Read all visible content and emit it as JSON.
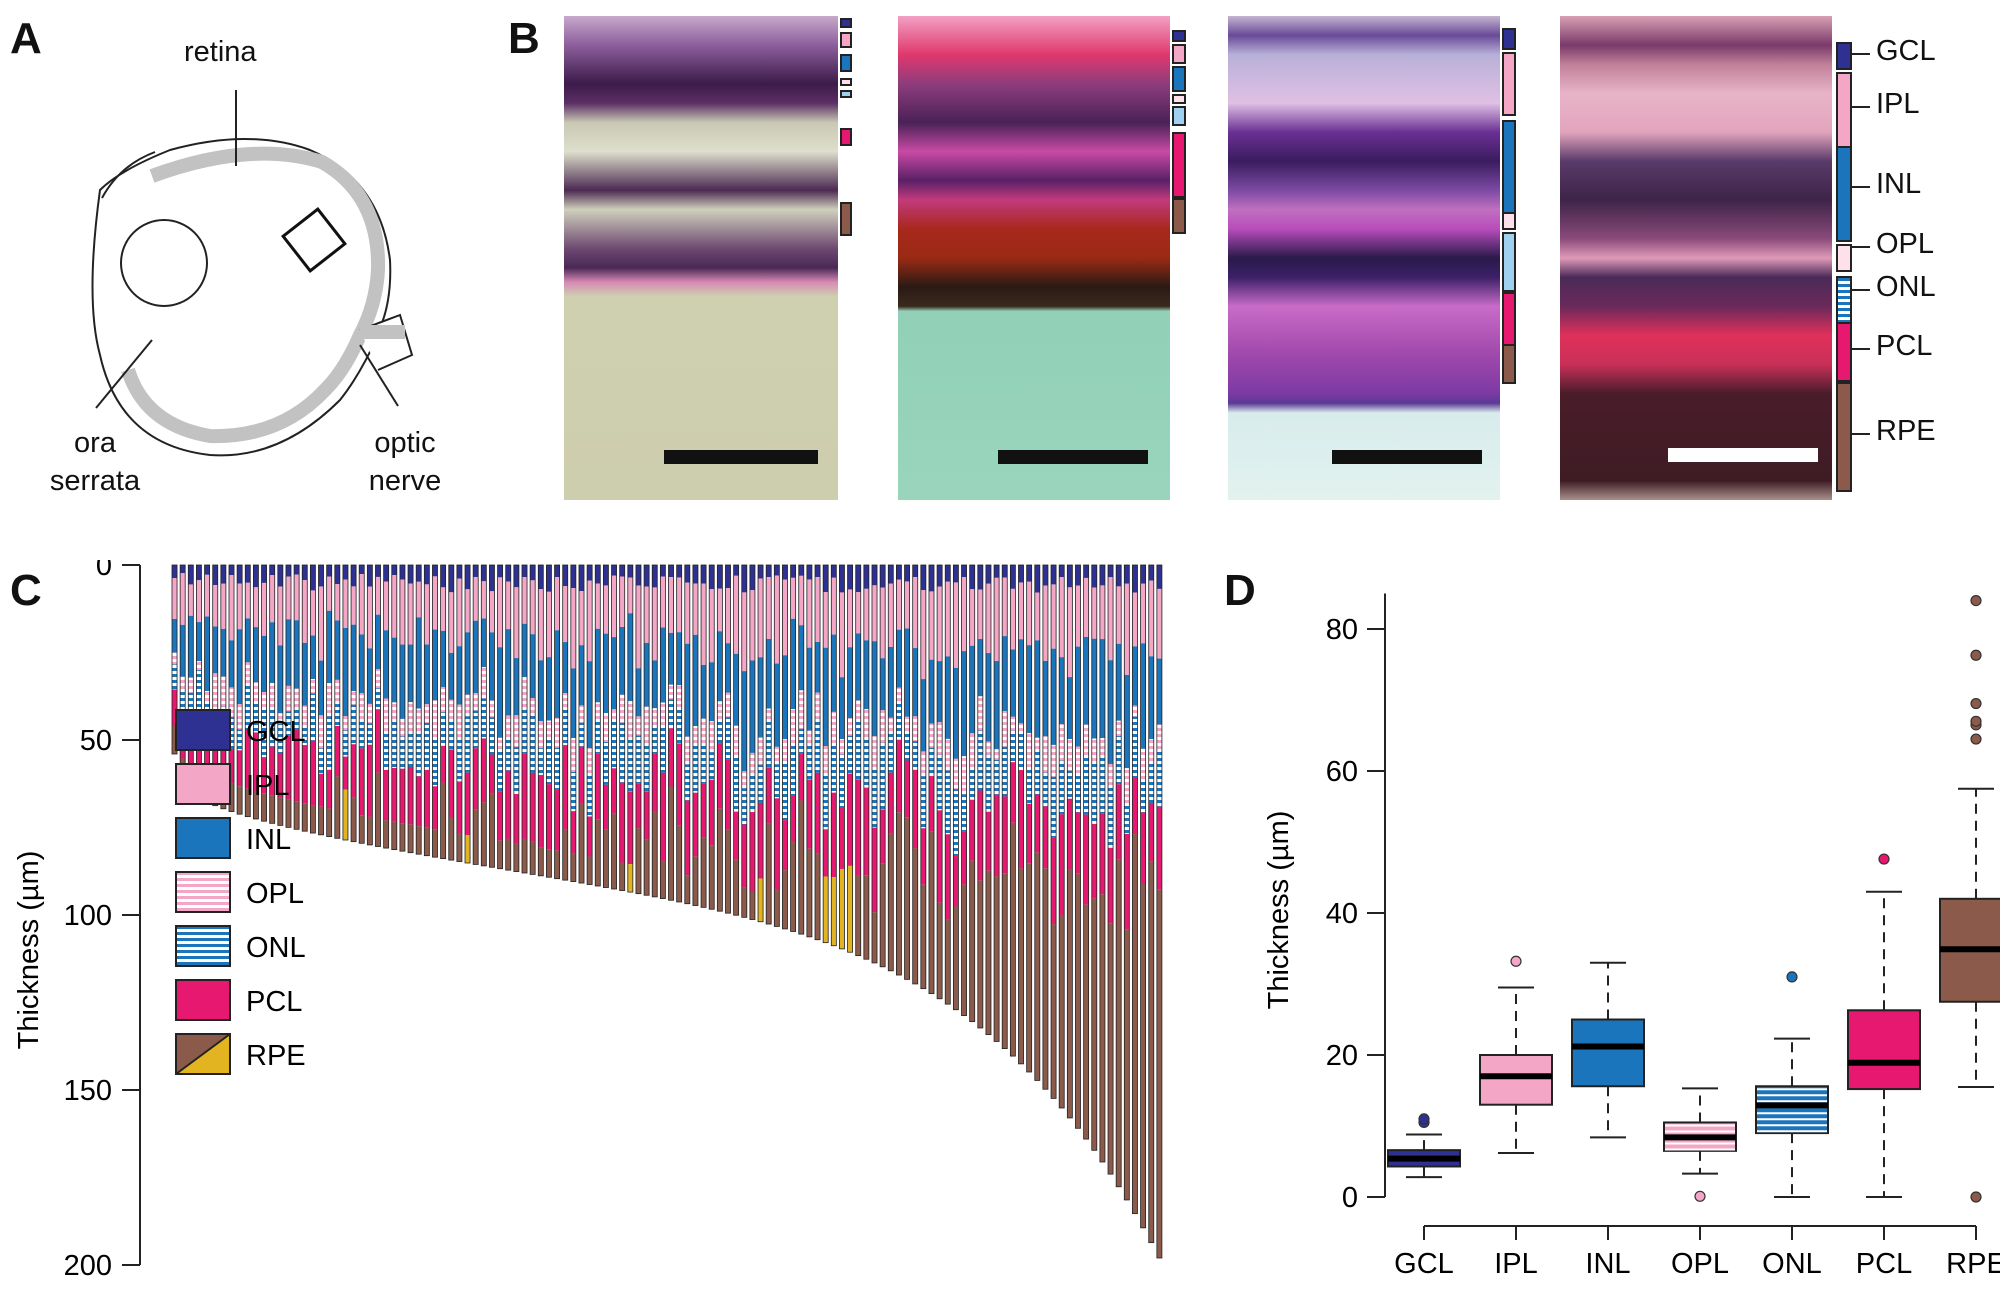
{
  "panels": {
    "a": {
      "letter": "A",
      "labels": {
        "retina": "retina",
        "ora_line1": "ora",
        "ora_line2": "serrata",
        "optic_line1": "optic",
        "optic_line2": "nerve"
      }
    },
    "b": {
      "letter": "B",
      "layer_labels": [
        "GCL",
        "IPL",
        "INL",
        "OPL",
        "ONL",
        "PCL",
        "RPE"
      ]
    },
    "c": {
      "letter": "C",
      "ylabel": "Thickness (µm)",
      "yticks": [
        "0",
        "50",
        "100",
        "150",
        "200"
      ],
      "legend": [
        {
          "name": "GCL",
          "color": "#2e3192",
          "pattern": "solid"
        },
        {
          "name": "IPL",
          "color": "#f4a6c6",
          "pattern": "solid"
        },
        {
          "name": "INL",
          "color": "#1b75bc",
          "pattern": "solid"
        },
        {
          "name": "OPL",
          "color": "#f4a6c6",
          "pattern": "hstripe"
        },
        {
          "name": "ONL",
          "color": "#1b75bc",
          "pattern": "hstripe"
        },
        {
          "name": "PCL",
          "color": "#e6186f",
          "pattern": "solid"
        },
        {
          "name": "RPE",
          "color": "#8b5a4a",
          "pattern": "diag",
          "alt_color": "#e3b422"
        }
      ]
    },
    "d": {
      "letter": "D",
      "ylabel": "Thickness (µm)",
      "yticks": [
        "0",
        "20",
        "40",
        "60",
        "80"
      ]
    }
  },
  "colors": {
    "GCL": "#2e3192",
    "IPL": "#f4a6c6",
    "INL": "#1b75bc",
    "OPL": "#f4a6c6",
    "ONL": "#1b75bc",
    "PCL": "#e6186f",
    "RPE": "#8b5a4a",
    "RPE_alt": "#e3b422"
  },
  "chart_data": [
    {
      "type": "bar",
      "stacked": true,
      "orientation": "vertical-inverted",
      "ylabel": "Thickness (µm)",
      "ylim": [
        0,
        200
      ],
      "layers": [
        "GCL",
        "IPL",
        "INL",
        "OPL",
        "ONL",
        "PCL",
        "RPE"
      ],
      "n_samples": 122,
      "total_thickness_range": [
        54,
        198
      ],
      "highlight_rpe_samples": [
        2,
        4,
        21,
        36,
        56,
        72,
        80,
        81,
        82,
        83
      ]
    },
    {
      "type": "box",
      "ylabel": "Thickness (µm)",
      "ylim": [
        0,
        85
      ],
      "categories": [
        "GCL",
        "IPL",
        "INL",
        "OPL",
        "ONL",
        "PCL",
        "RPE"
      ],
      "boxes": [
        {
          "name": "GCL",
          "min": 2.8,
          "q1": 4.3,
          "median": 5.4,
          "q3": 6.6,
          "max": 8.8,
          "outliers": [
            10.5,
            11.0
          ]
        },
        {
          "name": "IPL",
          "min": 6.2,
          "q1": 13.0,
          "median": 17.0,
          "q3": 20.0,
          "max": 29.5,
          "outliers": [
            33.2
          ]
        },
        {
          "name": "INL",
          "min": 8.4,
          "q1": 15.6,
          "median": 21.2,
          "q3": 25.0,
          "max": 33.0,
          "outliers": []
        },
        {
          "name": "OPL",
          "min": 3.3,
          "q1": 6.5,
          "median": 8.4,
          "q3": 10.5,
          "max": 15.3,
          "outliers": [
            0.1
          ]
        },
        {
          "name": "ONL",
          "min": 0.0,
          "q1": 9.0,
          "median": 12.9,
          "q3": 15.6,
          "max": 22.3,
          "outliers": [
            31.0
          ]
        },
        {
          "name": "PCL",
          "min": 0.0,
          "q1": 15.2,
          "median": 18.9,
          "q3": 26.3,
          "max": 43.0,
          "outliers": [
            47.6
          ]
        },
        {
          "name": "RPE",
          "min": 15.5,
          "q1": 27.5,
          "median": 34.9,
          "q3": 42.0,
          "max": 57.5,
          "outliers": [
            0.0,
            64.5,
            66.5,
            67.0,
            69.5,
            76.3,
            84.0
          ]
        }
      ]
    }
  ]
}
